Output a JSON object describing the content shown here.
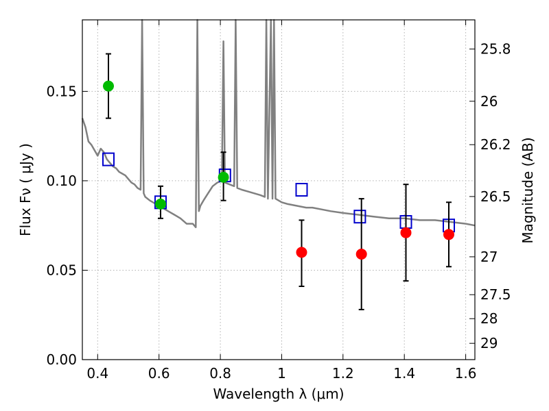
{
  "chart_data": {
    "type": "scatter",
    "xlabel": "Wavelength  λ (μm)",
    "ylabel": "Flux  Fν  ( μJy )",
    "y2label": "Magnitude (AB)",
    "xlim": [
      0.35,
      1.63
    ],
    "ylim": [
      0.0,
      0.19
    ],
    "grid": true,
    "x_ticks": [
      0.4,
      0.6,
      0.8,
      1.0,
      1.2,
      1.4,
      1.6
    ],
    "x_tick_labels": [
      "0.4",
      "0.6",
      "0.8",
      "1",
      "1.2",
      "1.4",
      "1.6"
    ],
    "y_ticks": [
      0.0,
      0.05,
      0.1,
      0.15
    ],
    "y_tick_labels": [
      "0.00",
      "0.05",
      "0.10",
      "0.15"
    ],
    "y2_ticks": [
      {
        "label": "25.8",
        "flux": 0.1737
      },
      {
        "label": "26",
        "flux": 0.1445
      },
      {
        "label": "26.2",
        "flux": 0.1202
      },
      {
        "label": "26.5",
        "flux": 0.0912
      },
      {
        "label": "27",
        "flux": 0.0575
      },
      {
        "label": "27.5",
        "flux": 0.0363
      },
      {
        "label": "28",
        "flux": 0.0229
      },
      {
        "label": "29",
        "flux": 0.0091
      }
    ],
    "colors": {
      "model": "#808080",
      "observed_bands": "#00bb00",
      "dropout_bands": "#ff0000",
      "model_photometry": "#0000cc",
      "error_bars": "#000000",
      "grid": "#b0b0b0"
    },
    "series": [
      {
        "kind": "line",
        "x": [
          0.35,
          0.36,
          0.37,
          0.38,
          0.39,
          0.4,
          0.41,
          0.42,
          0.43,
          0.44,
          0.45,
          0.46,
          0.47,
          0.48,
          0.49,
          0.5,
          0.51,
          0.52,
          0.53,
          0.54,
          0.545,
          0.55,
          0.555,
          0.57,
          0.59,
          0.61,
          0.63,
          0.65,
          0.67,
          0.69,
          0.71,
          0.72,
          0.725,
          0.73,
          0.735,
          0.745,
          0.76,
          0.775,
          0.79,
          0.805,
          0.81,
          0.815,
          0.83,
          0.845,
          0.85,
          0.855,
          0.87,
          0.89,
          0.91,
          0.93,
          0.945,
          0.95,
          0.955,
          0.965,
          0.97,
          0.975,
          0.98,
          0.99,
          1.0,
          1.02,
          1.05,
          1.08,
          1.1,
          1.13,
          1.16,
          1.2,
          1.25,
          1.3,
          1.35,
          1.4,
          1.45,
          1.5,
          1.55,
          1.6,
          1.63
        ],
        "y": [
          0.135,
          0.13,
          0.122,
          0.12,
          0.117,
          0.114,
          0.118,
          0.116,
          0.112,
          0.11,
          0.108,
          0.107,
          0.105,
          0.104,
          0.103,
          0.101,
          0.099,
          0.098,
          0.096,
          0.095,
          0.19,
          0.093,
          0.091,
          0.089,
          0.087,
          0.085,
          0.083,
          0.081,
          0.079,
          0.076,
          0.076,
          0.074,
          0.19,
          0.083,
          0.086,
          0.089,
          0.093,
          0.097,
          0.099,
          0.1,
          0.178,
          0.099,
          0.098,
          0.097,
          0.19,
          0.096,
          0.095,
          0.094,
          0.093,
          0.092,
          0.091,
          0.19,
          0.09,
          0.19,
          0.09,
          0.19,
          0.09,
          0.089,
          0.088,
          0.087,
          0.086,
          0.085,
          0.085,
          0.084,
          0.083,
          0.082,
          0.081,
          0.08,
          0.079,
          0.079,
          0.078,
          0.078,
          0.077,
          0.076,
          0.075
        ]
      },
      {
        "kind": "square",
        "x": [
          0.435,
          0.605,
          0.815,
          1.065,
          1.255,
          1.405,
          1.545
        ],
        "y": [
          0.112,
          0.088,
          0.103,
          0.095,
          0.08,
          0.077,
          0.075
        ]
      },
      {
        "kind": "point",
        "x": [
          0.435,
          0.605,
          0.81
        ],
        "y": [
          0.153,
          0.087,
          0.102
        ],
        "err_low": [
          0.135,
          0.079,
          0.089
        ],
        "err_high": [
          0.171,
          0.097,
          0.116
        ]
      },
      {
        "kind": "point",
        "x": [
          1.065,
          1.26,
          1.405,
          1.545
        ],
        "y": [
          0.06,
          0.059,
          0.071,
          0.07
        ],
        "err_low": [
          0.041,
          0.028,
          0.044,
          0.052
        ],
        "err_high": [
          0.078,
          0.09,
          0.098,
          0.088
        ]
      }
    ]
  }
}
